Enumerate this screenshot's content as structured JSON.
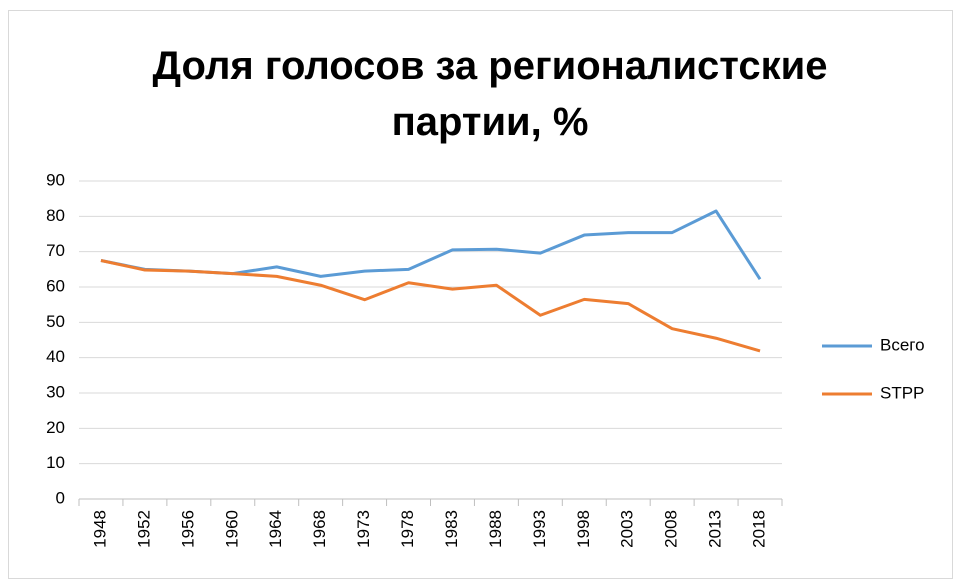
{
  "chart_data": {
    "type": "line",
    "title": "Доля голосов за регионалистские партии, %",
    "categories": [
      "1948",
      "1952",
      "1956",
      "1960",
      "1964",
      "1968",
      "1973",
      "1978",
      "1983",
      "1988",
      "1993",
      "1998",
      "2003",
      "2008",
      "2013",
      "2018"
    ],
    "series": [
      {
        "name": "Всего",
        "color": "#5b9bd5",
        "values": [
          67.5,
          65,
          64.5,
          63.8,
          65.7,
          63,
          64.5,
          65,
          70.5,
          70.7,
          69.6,
          74.7,
          75.4,
          75.4,
          81.5,
          62.2
        ]
      },
      {
        "name": "STPP",
        "color": "#ed7d31",
        "values": [
          67.5,
          64.8,
          64.5,
          63.8,
          63,
          60.5,
          56.4,
          61.2,
          59.4,
          60.5,
          52,
          56.5,
          55.3,
          48.2,
          45.5,
          41.9
        ]
      }
    ],
    "ylim": [
      0,
      90
    ],
    "yticks": [
      0,
      10,
      20,
      30,
      40,
      50,
      60,
      70,
      80,
      90
    ],
    "grid": true,
    "legend": "right"
  }
}
